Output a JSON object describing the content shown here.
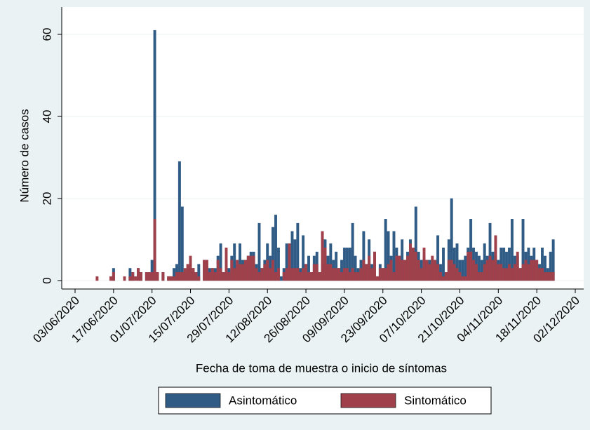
{
  "chart_data": {
    "type": "bar",
    "overlay": true,
    "x_label": "Fecha de toma de muestra o inicio de síntomas",
    "y_label": "Número de casos",
    "x": [
      "03/06/2020",
      "04/06/2020",
      "05/06/2020",
      "06/06/2020",
      "07/06/2020",
      "08/06/2020",
      "09/06/2020",
      "10/06/2020",
      "11/06/2020",
      "12/06/2020",
      "13/06/2020",
      "14/06/2020",
      "15/06/2020",
      "16/06/2020",
      "17/06/2020",
      "18/06/2020",
      "19/06/2020",
      "20/06/2020",
      "21/06/2020",
      "22/06/2020",
      "23/06/2020",
      "24/06/2020",
      "25/06/2020",
      "26/06/2020",
      "27/06/2020",
      "28/06/2020",
      "29/06/2020",
      "30/06/2020",
      "01/07/2020",
      "02/07/2020",
      "03/07/2020",
      "04/07/2020",
      "05/07/2020",
      "06/07/2020",
      "07/07/2020",
      "08/07/2020",
      "09/07/2020",
      "10/07/2020",
      "11/07/2020",
      "12/07/2020",
      "13/07/2020",
      "14/07/2020",
      "15/07/2020",
      "16/07/2020",
      "17/07/2020",
      "18/07/2020",
      "19/07/2020",
      "20/07/2020",
      "21/07/2020",
      "22/07/2020",
      "23/07/2020",
      "24/07/2020",
      "25/07/2020",
      "26/07/2020",
      "27/07/2020",
      "28/07/2020",
      "29/07/2020",
      "30/07/2020",
      "31/07/2020",
      "01/08/2020",
      "02/08/2020",
      "03/08/2020",
      "04/08/2020",
      "05/08/2020",
      "06/08/2020",
      "07/08/2020",
      "08/08/2020",
      "09/08/2020",
      "10/08/2020",
      "11/08/2020",
      "12/08/2020",
      "13/08/2020",
      "14/08/2020",
      "15/08/2020",
      "16/08/2020",
      "17/08/2020",
      "18/08/2020",
      "19/08/2020",
      "20/08/2020",
      "21/08/2020",
      "22/08/2020",
      "23/08/2020",
      "24/08/2020",
      "25/08/2020",
      "26/08/2020",
      "27/08/2020",
      "28/08/2020",
      "29/08/2020",
      "30/08/2020",
      "31/08/2020",
      "01/09/2020",
      "02/09/2020",
      "03/09/2020",
      "04/09/2020",
      "05/09/2020",
      "06/09/2020",
      "07/09/2020",
      "08/09/2020",
      "09/09/2020",
      "10/09/2020",
      "11/09/2020",
      "12/09/2020",
      "13/09/2020",
      "14/09/2020",
      "15/09/2020",
      "16/09/2020",
      "17/09/2020",
      "18/09/2020",
      "19/09/2020",
      "20/09/2020",
      "21/09/2020",
      "22/09/2020",
      "23/09/2020",
      "24/09/2020",
      "25/09/2020",
      "26/09/2020",
      "27/09/2020",
      "28/09/2020",
      "29/09/2020",
      "30/09/2020",
      "01/10/2020",
      "02/10/2020",
      "03/10/2020",
      "04/10/2020",
      "05/10/2020",
      "06/10/2020",
      "07/10/2020",
      "08/10/2020",
      "09/10/2020",
      "10/10/2020",
      "11/10/2020",
      "12/10/2020",
      "13/10/2020",
      "14/10/2020",
      "15/10/2020",
      "16/10/2020",
      "17/10/2020",
      "18/10/2020",
      "19/10/2020",
      "20/10/2020",
      "21/10/2020",
      "22/10/2020",
      "23/10/2020",
      "24/10/2020",
      "25/10/2020",
      "26/10/2020",
      "27/10/2020",
      "28/10/2020",
      "29/10/2020",
      "30/10/2020",
      "31/10/2020",
      "01/11/2020",
      "02/11/2020",
      "03/11/2020",
      "04/11/2020",
      "05/11/2020",
      "06/11/2020",
      "07/11/2020",
      "08/11/2020",
      "09/11/2020",
      "10/11/2020",
      "11/11/2020",
      "12/11/2020",
      "13/11/2020",
      "14/11/2020",
      "15/11/2020",
      "16/11/2020",
      "17/11/2020",
      "18/11/2020",
      "19/11/2020",
      "20/11/2020",
      "21/11/2020",
      "22/11/2020",
      "23/11/2020",
      "24/11/2020"
    ],
    "series": [
      {
        "name": "Asintomático",
        "color": "#2f5b85",
        "values": [
          0,
          0,
          0,
          0,
          0,
          0,
          0,
          0,
          0,
          0,
          0,
          0,
          0,
          0,
          3,
          0,
          0,
          0,
          0,
          0,
          3,
          2,
          0,
          3,
          2,
          0,
          2,
          2,
          5,
          61,
          2,
          0,
          2,
          0,
          1,
          1,
          3,
          4,
          29,
          18,
          2,
          3,
          4,
          3,
          2,
          4,
          0,
          5,
          5,
          3,
          3,
          3,
          6,
          9,
          2,
          5,
          3,
          6,
          9,
          4,
          9,
          5,
          5,
          6,
          7,
          7,
          4,
          14,
          3,
          5,
          9,
          6,
          13,
          16,
          8,
          1,
          3,
          9,
          9,
          12,
          10,
          14,
          3,
          11,
          4,
          6,
          2,
          6,
          7,
          2,
          4,
          10,
          6,
          9,
          5,
          7,
          3,
          5,
          8,
          8,
          8,
          14,
          6,
          3,
          5,
          12,
          4,
          10,
          4,
          7,
          1,
          4,
          3,
          15,
          12,
          6,
          12,
          8,
          6,
          10,
          5,
          7,
          10,
          8,
          18,
          7,
          5,
          6,
          5,
          5,
          5,
          5,
          11,
          4,
          8,
          2,
          10,
          20,
          8,
          9,
          5,
          5,
          6,
          8,
          15,
          8,
          7,
          6,
          5,
          9,
          6,
          14,
          7,
          6,
          5,
          8,
          8,
          7,
          8,
          15,
          6,
          6,
          3,
          15,
          7,
          8,
          6,
          8,
          5,
          4,
          8,
          6,
          3,
          7,
          10
        ]
      },
      {
        "name": "Sintomático",
        "color": "#a0404a",
        "values": [
          0,
          0,
          0,
          0,
          0,
          0,
          0,
          0,
          1,
          0,
          0,
          0,
          0,
          1,
          2,
          0,
          0,
          0,
          1,
          0,
          1,
          2,
          1,
          3,
          2,
          0,
          2,
          2,
          2,
          15,
          2,
          0,
          2,
          0,
          1,
          1,
          1,
          2,
          2,
          2,
          3,
          4,
          6,
          3,
          2,
          1,
          0,
          5,
          5,
          2,
          3,
          2,
          5,
          3,
          2,
          8,
          2,
          5,
          3,
          5,
          4,
          4,
          5,
          6,
          6,
          6,
          3,
          2,
          3,
          4,
          5,
          3,
          5,
          2,
          3,
          0,
          2,
          3,
          9,
          3,
          3,
          3,
          2,
          3,
          4,
          2,
          2,
          4,
          4,
          2,
          12,
          8,
          4,
          4,
          3,
          3,
          3,
          2,
          3,
          3,
          2,
          3,
          2,
          2,
          3,
          5,
          4,
          6,
          3,
          7,
          1,
          3,
          3,
          3,
          4,
          5,
          2,
          6,
          6,
          5,
          5,
          6,
          9,
          8,
          7,
          5,
          3,
          8,
          5,
          4,
          6,
          5,
          4,
          2,
          1,
          2,
          5,
          5,
          4,
          3,
          2,
          1,
          1,
          7,
          7,
          5,
          4,
          2,
          2,
          4,
          5,
          6,
          5,
          11,
          4,
          4,
          3,
          3,
          4,
          3,
          4,
          7,
          3,
          4,
          5,
          4,
          5,
          5,
          5,
          3,
          3,
          2,
          2,
          2,
          2
        ]
      }
    ],
    "xlim": [
      "03/06/2020",
      "02/12/2020"
    ],
    "xticks": [
      "03/06/2020",
      "17/06/2020",
      "01/07/2020",
      "15/07/2020",
      "29/07/2020",
      "12/08/2020",
      "26/08/2020",
      "09/09/2020",
      "23/09/2020",
      "07/10/2020",
      "21/10/2020",
      "04/11/2020",
      "18/11/2020",
      "02/12/2020"
    ],
    "ylim": [
      0,
      60
    ],
    "yticks": [
      0,
      20,
      40,
      60
    ],
    "grid": true
  }
}
